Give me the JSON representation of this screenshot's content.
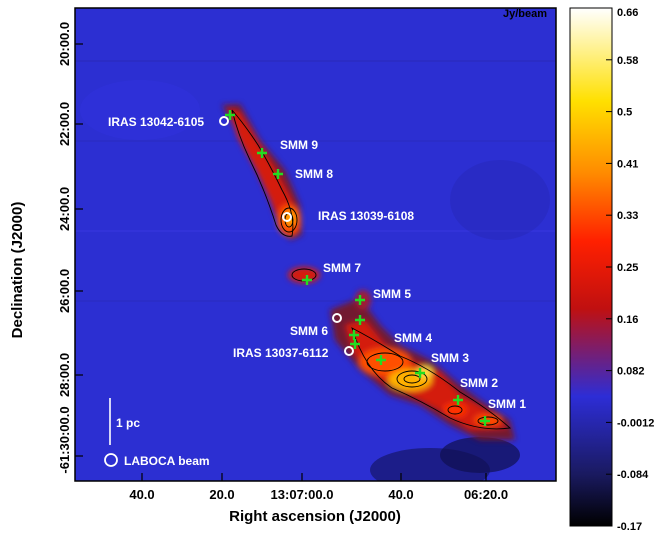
{
  "chart_data": {
    "type": "heatmap",
    "title": "",
    "xlabel": "Right ascension (J2000)",
    "ylabel": "Declination (J2000)",
    "x_ticks": [
      "40.0",
      "20.0",
      "13:07:00.0",
      "40.0",
      "06:20.0"
    ],
    "y_ticks": [
      "20:00.0",
      "22:00.0",
      "24:00.0",
      "26:00.0",
      "28:00.0",
      "-61:30:00.0"
    ],
    "colorbar": {
      "unit": "Jy/beam",
      "ticks": [
        "0.66",
        "0.58",
        "0.5",
        "0.41",
        "0.33",
        "0.25",
        "0.16",
        "0.082",
        "-0.0012",
        "-0.084",
        "-0.17"
      ],
      "range": [
        -0.17,
        0.66
      ],
      "colormap": [
        "#000000",
        "#1a1a60",
        "#2d2dd6",
        "#c01010",
        "#ff2000",
        "#ff8a00",
        "#ffe000",
        "#ffffff"
      ]
    },
    "sources": [
      {
        "label": "IRAS 13042-6105",
        "kind": "iras"
      },
      {
        "label": "SMM 9",
        "kind": "smm"
      },
      {
        "label": "SMM 8",
        "kind": "smm"
      },
      {
        "label": "IRAS 13039-6108",
        "kind": "iras"
      },
      {
        "label": "SMM 7",
        "kind": "smm"
      },
      {
        "label": "SMM 5",
        "kind": "smm"
      },
      {
        "label": "SMM 6",
        "kind": "smm"
      },
      {
        "label": "SMM 4",
        "kind": "smm"
      },
      {
        "label": "IRAS 13037-6112",
        "kind": "iras"
      },
      {
        "label": "SMM 3",
        "kind": "smm"
      },
      {
        "label": "SMM 2",
        "kind": "smm"
      },
      {
        "label": "SMM 1",
        "kind": "smm"
      }
    ],
    "scale_bar_label": "1 pc",
    "beam_label": "LABOCA beam",
    "marker_colors": {
      "smm": "#22dd22",
      "iras": "#ffffff"
    }
  }
}
